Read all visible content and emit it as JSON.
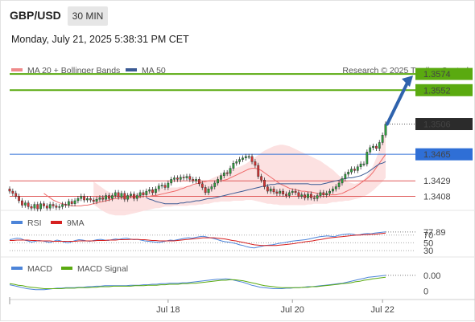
{
  "header": {
    "pair": "GBP/USD",
    "timeframe": "30 MIN",
    "datetime": "Monday, July 21, 2025 5:38:31 PM CET"
  },
  "legend": {
    "bollinger": "MA 20 + Bollinger Bands",
    "ma50": "MA 50",
    "credit": "Research © 2025 Trading Central",
    "rsi": "RSI",
    "rsi_ma": "9MA",
    "macd": "MACD",
    "macd_signal": "MACD Signal"
  },
  "colors": {
    "bullish_level": "#5aaa10",
    "pivot": "#2f6fd6",
    "support": "#e05a5a",
    "bollinger_fill": "#fbdada",
    "ma20": "#ef6a6a",
    "ma50": "#3b5a94",
    "arrow": "#2f63ad",
    "candle_up": "#2e9f3e",
    "candle_down": "#d43333",
    "rsi": "#4c84d9",
    "rsi_ma": "#d62020",
    "macd": "#4c84d9",
    "macd_signal": "#5aaa10",
    "last_price_bg": "#2b2b2b"
  },
  "chart_data": [
    {
      "type": "candlestick",
      "panel": "price",
      "ylim": [
        1.339,
        1.3585
      ],
      "x_ticks": [
        {
          "index": 51,
          "label": "Jul 18"
        },
        {
          "index": 91,
          "label": "Jul 20"
        },
        {
          "index": 120,
          "label": "Jul 22"
        }
      ],
      "levels": [
        {
          "value": 1.3574,
          "label": "1.3574",
          "role": "resistance"
        },
        {
          "value": 1.3552,
          "label": "1.3552",
          "role": "resistance"
        },
        {
          "value": 1.3506,
          "label": "1.3506",
          "role": "last"
        },
        {
          "value": 1.3465,
          "label": "1.3465",
          "role": "pivot"
        },
        {
          "value": 1.3429,
          "label": "1.3429",
          "role": "support"
        },
        {
          "value": 1.3408,
          "label": "1.3408",
          "role": "support"
        }
      ],
      "close": [
        1.3415,
        1.3412,
        1.3408,
        1.3402,
        1.3396,
        1.3399,
        1.3394,
        1.3392,
        1.3397,
        1.3391,
        1.3398,
        1.3395,
        1.3392,
        1.3397,
        1.3395,
        1.3393,
        1.3394,
        1.3397,
        1.3396,
        1.3401,
        1.3398,
        1.3402,
        1.3405,
        1.3408,
        1.3403,
        1.3405,
        1.3403,
        1.3401,
        1.3404,
        1.3406,
        1.3404,
        1.3409,
        1.3405,
        1.3409,
        1.3413,
        1.3407,
        1.3412,
        1.3404,
        1.3409,
        1.3411,
        1.3405,
        1.3409,
        1.3413,
        1.341,
        1.3415,
        1.3417,
        1.3413,
        1.3418,
        1.3422,
        1.3423,
        1.342,
        1.3426,
        1.3431,
        1.3433,
        1.3431,
        1.3434,
        1.3433,
        1.3435,
        1.3431,
        1.3429,
        1.3431,
        1.3425,
        1.342,
        1.3413,
        1.3418,
        1.3421,
        1.3426,
        1.3431,
        1.3436,
        1.344,
        1.3439,
        1.3446,
        1.3453,
        1.3455,
        1.3458,
        1.346,
        1.3462,
        1.3462,
        1.3455,
        1.345,
        1.3435,
        1.343,
        1.3421,
        1.3415,
        1.3418,
        1.3414,
        1.3412,
        1.3415,
        1.3411,
        1.3409,
        1.3413,
        1.3415,
        1.3413,
        1.3408,
        1.341,
        1.3406,
        1.3411,
        1.3406,
        1.3405,
        1.3409,
        1.3413,
        1.341,
        1.3412,
        1.3415,
        1.3418,
        1.3421,
        1.3426,
        1.3432,
        1.3438,
        1.3441,
        1.3445,
        1.3443,
        1.3448,
        1.3452,
        1.3452,
        1.3468,
        1.3474,
        1.3476,
        1.3473,
        1.3481,
        1.3491,
        1.3506
      ],
      "series": [
        {
          "name": "MA 20",
          "values": [
            1.3412,
            1.3409,
            1.3406,
            1.3403,
            1.3401,
            1.3399,
            1.3398,
            1.3397,
            1.3396,
            1.3395,
            1.3395,
            1.3395,
            1.3395,
            1.3396,
            1.3396,
            1.3397,
            1.3398,
            1.3399,
            1.34,
            1.3401,
            1.3402,
            1.3403,
            1.3404,
            1.3405,
            1.3405,
            1.3406,
            1.3406,
            1.3406,
            1.3406,
            1.3407,
            1.3407,
            1.3407,
            1.3408,
            1.3408,
            1.3408,
            1.3409,
            1.3409,
            1.341,
            1.3411,
            1.3412,
            1.3413,
            1.3414,
            1.3415,
            1.3416,
            1.3418,
            1.3419,
            1.3421,
            1.3422,
            1.3424,
            1.3425,
            1.3426,
            1.3427,
            1.3428,
            1.3429,
            1.3429,
            1.3429,
            1.3429,
            1.3429,
            1.343,
            1.3431,
            1.3433,
            1.3435,
            1.3437,
            1.3439,
            1.3441,
            1.3443,
            1.3445,
            1.3446,
            1.3446,
            1.3445,
            1.3443,
            1.344,
            1.3437,
            1.3434,
            1.3431,
            1.3428,
            1.3425,
            1.3423,
            1.3421,
            1.3419,
            1.3418,
            1.3417,
            1.3416,
            1.3415,
            1.3415,
            1.3414,
            1.3414,
            1.3413,
            1.3412,
            1.3411,
            1.3411,
            1.341,
            1.341,
            1.341,
            1.341,
            1.3411,
            1.3412,
            1.3414,
            1.3416,
            1.3418,
            1.342,
            1.3423,
            1.3426,
            1.3429,
            1.3432,
            1.3436,
            1.3441,
            1.3447,
            1.3453,
            1.3459,
            1.3465
          ]
        },
        {
          "name": "MA 50",
          "values": [
            1.3406,
            1.3404,
            1.3403,
            1.3401,
            1.34,
            1.3399,
            1.3398,
            1.3398,
            1.3398,
            1.3398,
            1.3398,
            1.3399,
            1.3399,
            1.34,
            1.34,
            1.3401,
            1.3402,
            1.3402,
            1.3403,
            1.3404,
            1.3405,
            1.3405,
            1.3406,
            1.3407,
            1.3408,
            1.3409,
            1.341,
            1.3411,
            1.3412,
            1.3413,
            1.3414,
            1.3415,
            1.3416,
            1.3417,
            1.3418,
            1.3419,
            1.342,
            1.3421,
            1.3422,
            1.3423,
            1.3424,
            1.3424,
            1.3425,
            1.3425,
            1.3425,
            1.3425,
            1.3425,
            1.3425,
            1.3425,
            1.3425,
            1.3425,
            1.3425,
            1.3425,
            1.3424,
            1.3424,
            1.3424,
            1.3424,
            1.3425,
            1.3426,
            1.3427,
            1.3428,
            1.3429,
            1.343,
            1.3431,
            1.3432,
            1.3433,
            1.3433,
            1.3434,
            1.3435,
            1.3436,
            1.3438,
            1.344,
            1.3443,
            1.3446,
            1.3449,
            1.3452,
            1.3453,
            1.3455
          ]
        }
      ],
      "bollinger_upper": [
        1.3428,
        1.3425,
        1.3422,
        1.3419,
        1.3416,
        1.3414,
        1.3412,
        1.341,
        1.3409,
        1.3409,
        1.3409,
        1.341,
        1.341,
        1.341,
        1.3411,
        1.3412,
        1.3413,
        1.3414,
        1.3415,
        1.3416,
        1.3417,
        1.3418,
        1.3418,
        1.3419,
        1.3419,
        1.342,
        1.342,
        1.342,
        1.3421,
        1.3421,
        1.3421,
        1.3422,
        1.3423,
        1.3424,
        1.3425,
        1.3426,
        1.3428,
        1.343,
        1.3432,
        1.3434,
        1.3436,
        1.3437,
        1.3439,
        1.3441,
        1.3443,
        1.3445,
        1.3447,
        1.3448,
        1.345,
        1.3452,
        1.3455,
        1.3458,
        1.3461,
        1.3464,
        1.3467,
        1.347,
        1.3472,
        1.3474,
        1.3476,
        1.3477,
        1.3478,
        1.3478,
        1.3477,
        1.3476,
        1.3474,
        1.3472,
        1.347,
        1.3468,
        1.3466,
        1.3464,
        1.3462,
        1.346,
        1.3458,
        1.3456,
        1.3453,
        1.345,
        1.3447,
        1.3444,
        1.344,
        1.3436,
        1.3432,
        1.3429,
        1.3427,
        1.3426,
        1.3425,
        1.3426,
        1.3428,
        1.3431,
        1.3436,
        1.3442,
        1.345,
        1.346,
        1.3471,
        1.3484,
        1.3497
      ],
      "bollinger_lower": [
        1.3397,
        1.3394,
        1.3391,
        1.3388,
        1.3386,
        1.3384,
        1.3383,
        1.3382,
        1.3382,
        1.3382,
        1.3382,
        1.3383,
        1.3384,
        1.3385,
        1.3386,
        1.3387,
        1.3388,
        1.3389,
        1.339,
        1.3391,
        1.3392,
        1.3392,
        1.3393,
        1.3394,
        1.3394,
        1.3394,
        1.3395,
        1.3395,
        1.3395,
        1.3395,
        1.3395,
        1.3396,
        1.3396,
        1.3396,
        1.3397,
        1.3397,
        1.3398,
        1.3398,
        1.3399,
        1.34,
        1.34,
        1.3401,
        1.3401,
        1.3401,
        1.3401,
        1.3402,
        1.3402,
        1.3402,
        1.3402,
        1.3403,
        1.3403,
        1.3403,
        1.3402,
        1.3401,
        1.34,
        1.3399,
        1.3398,
        1.3398,
        1.3397,
        1.3397,
        1.3396,
        1.3396,
        1.3396,
        1.3396,
        1.3396,
        1.3396,
        1.3396,
        1.3396,
        1.3396,
        1.3397,
        1.3397,
        1.3398,
        1.3398,
        1.3398,
        1.3398,
        1.3398,
        1.3399,
        1.34,
        1.34,
        1.3401,
        1.3401,
        1.3402,
        1.3402,
        1.3403,
        1.3404,
        1.3405,
        1.3406,
        1.3408,
        1.341,
        1.3413,
        1.3416,
        1.342,
        1.3424,
        1.3428,
        1.3433
      ]
    },
    {
      "type": "line",
      "panel": "rsi",
      "ylim": [
        20,
        90
      ],
      "levels": [
        {
          "value": 70,
          "label": "70"
        },
        {
          "value": 50,
          "label": "50"
        },
        {
          "value": 30,
          "label": "30"
        }
      ],
      "last_value": "77.89",
      "series": [
        {
          "name": "RSI",
          "values": [
            58,
            60,
            62,
            61,
            57,
            55,
            52,
            54,
            56,
            55,
            53,
            51,
            54,
            57,
            55,
            52,
            50,
            53,
            56,
            58,
            57,
            55,
            54,
            56,
            58,
            59,
            57,
            56,
            58,
            60,
            59,
            61,
            62,
            60,
            58,
            59,
            57,
            55,
            54,
            53,
            52,
            51,
            53,
            55,
            57,
            56,
            58,
            60,
            62,
            63,
            62,
            64,
            66,
            67,
            65,
            63,
            61,
            58,
            55,
            53,
            52,
            50,
            48,
            45,
            43,
            40,
            38,
            37,
            39,
            41,
            43,
            44,
            45,
            47,
            49,
            50,
            52,
            54,
            55,
            56,
            57,
            58,
            60,
            62,
            64,
            66,
            67,
            68,
            67,
            66,
            69,
            71,
            72,
            73,
            72,
            70,
            71,
            73,
            74,
            73,
            75,
            76,
            77,
            78
          ]
        },
        {
          "name": "9MA",
          "values": [
            56,
            56,
            57,
            57,
            57,
            57,
            56,
            56,
            55,
            55,
            55,
            55,
            54,
            54,
            54,
            54,
            54,
            54,
            54,
            55,
            55,
            55,
            55,
            55,
            56,
            56,
            56,
            57,
            57,
            57,
            58,
            58,
            58,
            59,
            59,
            59,
            58,
            58,
            57,
            56,
            56,
            55,
            55,
            55,
            55,
            55,
            56,
            57,
            58,
            59,
            60,
            61,
            62,
            63,
            63,
            63,
            63,
            62,
            61,
            60,
            58,
            56,
            55,
            53,
            51,
            49,
            47,
            45,
            44,
            43,
            43,
            43,
            43,
            43,
            44,
            45,
            46,
            47,
            48,
            50,
            51,
            53,
            54,
            55,
            57,
            58,
            60,
            62,
            63,
            64,
            65,
            66,
            67,
            68,
            69,
            70,
            70,
            71,
            71,
            72,
            72,
            73,
            74,
            75
          ]
        }
      ]
    },
    {
      "type": "line",
      "panel": "macd",
      "ylim": [
        -0.003,
        0.0017
      ],
      "levels": [
        {
          "value": 0,
          "label": "0"
        }
      ],
      "last_value": "0.00",
      "series": [
        {
          "name": "MACD",
          "values": [
            -0.0005,
            -0.0007,
            -0.0009,
            -0.0011,
            -0.0013,
            -0.0014,
            -0.0015,
            -0.0015,
            -0.0015,
            -0.0014,
            -0.0013,
            -0.0012,
            -0.0012,
            -0.0011,
            -0.0011,
            -0.0011,
            -0.001,
            -0.001,
            -0.0009,
            -0.0009,
            -0.0008,
            -0.0008,
            -0.0007,
            -0.0007,
            -0.0007,
            -0.0007,
            -0.0007,
            -0.0007,
            -0.0006,
            -0.0006,
            -0.0006,
            -0.0005,
            -0.0005,
            -0.0004,
            -0.0004,
            -0.0003,
            -0.0003,
            -0.0002,
            -0.0002,
            -0.0002,
            -0.0001,
            -0.0001,
            0.0,
            0.0001,
            0.0002,
            0.0003,
            0.0004,
            0.0005,
            0.0006,
            0.0006,
            0.0007,
            0.0006,
            0.0004,
            0.0002,
            0.0,
            -0.0003,
            -0.0006,
            -0.0008,
            -0.001,
            -0.0011,
            -0.0012,
            -0.0013,
            -0.0013,
            -0.0013,
            -0.0012,
            -0.0012,
            -0.0011,
            -0.0011,
            -0.001,
            -0.0009,
            -0.0009,
            -0.0008,
            -0.0007,
            -0.0006,
            -0.0005,
            -0.0004,
            -0.0003,
            -0.0002,
            0.0,
            0.0002,
            0.0004,
            0.0006,
            0.0008,
            0.001,
            0.0011,
            0.0012,
            0.0013,
            0.0014
          ]
        },
        {
          "name": "MACD Signal",
          "values": [
            -0.0003,
            -0.0004,
            -0.0006,
            -0.0007,
            -0.0009,
            -0.001,
            -0.0011,
            -0.0012,
            -0.0013,
            -0.0013,
            -0.0013,
            -0.0013,
            -0.0013,
            -0.0012,
            -0.0012,
            -0.0012,
            -0.0011,
            -0.0011,
            -0.0011,
            -0.001,
            -0.001,
            -0.0009,
            -0.0009,
            -0.0009,
            -0.0008,
            -0.0008,
            -0.0008,
            -0.0008,
            -0.0008,
            -0.0007,
            -0.0007,
            -0.0007,
            -0.0006,
            -0.0006,
            -0.0006,
            -0.0005,
            -0.0005,
            -0.0004,
            -0.0004,
            -0.0004,
            -0.0003,
            -0.0003,
            -0.0002,
            -0.0002,
            -0.0001,
            0.0,
            0.0001,
            0.0002,
            0.0003,
            0.0004,
            0.0004,
            0.0005,
            0.0005,
            0.0004,
            0.0003,
            0.0001,
            -0.0001,
            -0.0003,
            -0.0005,
            -0.0007,
            -0.0008,
            -0.0009,
            -0.001,
            -0.0011,
            -0.0011,
            -0.0011,
            -0.0011,
            -0.0011,
            -0.001,
            -0.001,
            -0.0009,
            -0.0009,
            -0.0008,
            -0.0007,
            -0.0006,
            -0.0005,
            -0.0004,
            -0.0003,
            -0.0002,
            -0.0001,
            0.0001,
            0.0002,
            0.0004,
            0.0005,
            0.0007,
            0.0008,
            0.0009,
            0.001
          ]
        }
      ]
    }
  ]
}
